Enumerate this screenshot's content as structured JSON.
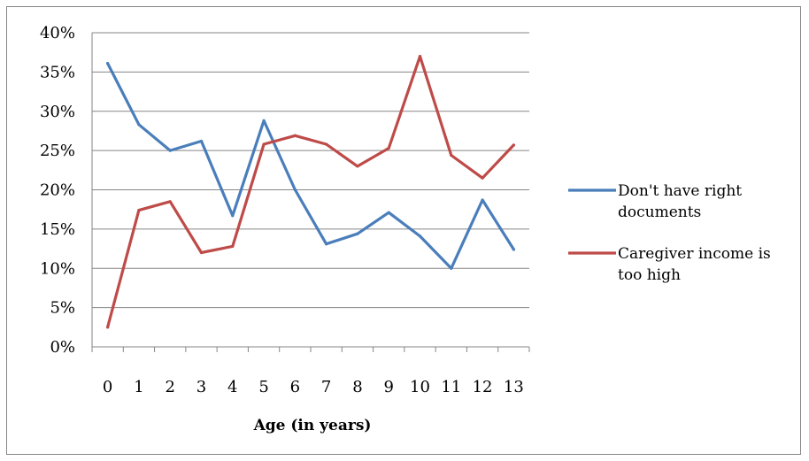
{
  "chart_data": {
    "type": "line",
    "title": "",
    "xlabel": "Age (in years)",
    "ylabel": "",
    "categories": [
      "0",
      "1",
      "2",
      "3",
      "4",
      "5",
      "6",
      "7",
      "8",
      "9",
      "10",
      "11",
      "12",
      "13"
    ],
    "ylim": [
      0,
      40
    ],
    "yticks": [
      "0%",
      "5%",
      "10%",
      "15%",
      "20%",
      "25%",
      "30%",
      "35%",
      "40%"
    ],
    "grid": true,
    "legend_position": "right",
    "series": [
      {
        "name": "Don't have right documents",
        "name_lines": [
          "Don't have right",
          "documents"
        ],
        "color": "#4a7ebb",
        "values": [
          36.1,
          28.3,
          25.0,
          26.2,
          16.7,
          28.8,
          20.0,
          13.1,
          14.4,
          17.1,
          14.1,
          10.0,
          18.7,
          12.4
        ]
      },
      {
        "name": "Caregiver income is too high",
        "name_lines": [
          "Caregiver income is",
          "too high"
        ],
        "color": "#be4b48",
        "values": [
          2.5,
          17.4,
          18.5,
          12.0,
          12.8,
          25.8,
          26.9,
          25.8,
          23.0,
          25.3,
          37.0,
          24.4,
          21.5,
          25.7
        ]
      }
    ]
  }
}
